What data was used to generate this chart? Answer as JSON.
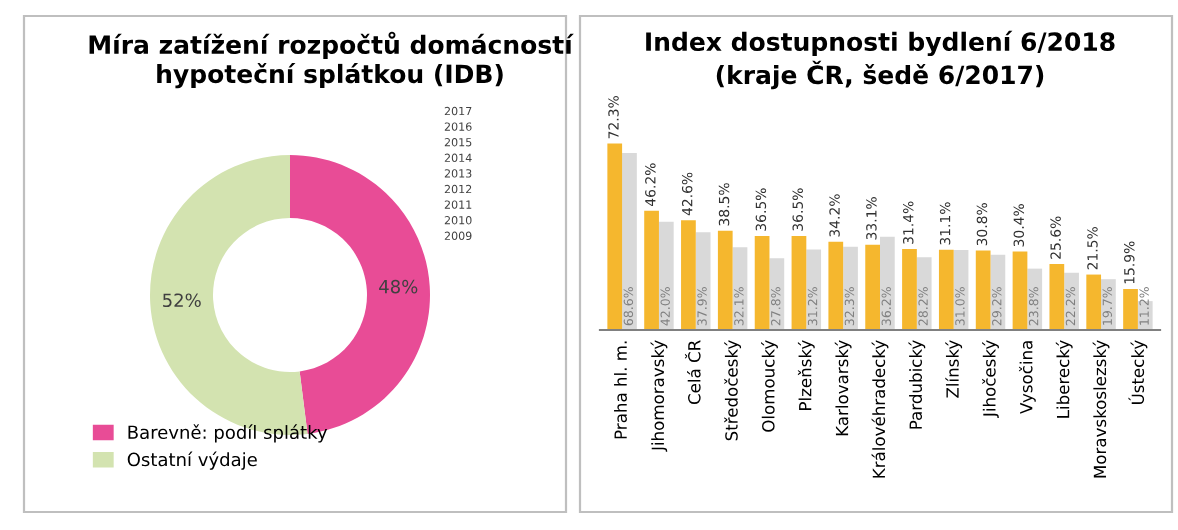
{
  "chart_data": [
    {
      "type": "donut",
      "title": "Míra zatížení rozpočtů domácností\nhypoteční splátkou (IDB)",
      "categories": [
        "Barevně: podíl splátky",
        "Ostatní výdaje"
      ],
      "values": [
        48,
        52
      ],
      "colors": [
        "#e84c96",
        "#d3e3b0"
      ],
      "value_labels": [
        "48%",
        "52%"
      ],
      "legend": "bottom left",
      "annotations": [
        "2017",
        "2016",
        "2015",
        "2014",
        "2013",
        "2012",
        "2011",
        "2010",
        "2009"
      ]
    },
    {
      "type": "bar",
      "title": "Index dostupnosti bydlení 6/2018\n(kraje ČR, šedě 6/2017)",
      "categories": [
        "Praha hl. m.",
        "Jihomoravský",
        "Celá ČR",
        "Středočeský",
        "Olomoucký",
        "Plzeňský",
        "Karlovarský",
        "Královéhradecký",
        "Pardubický",
        "Zlínský",
        "Jihočeský",
        "Vysočina",
        "Liberecký",
        "Moravskoslezský",
        "Ústecký"
      ],
      "tick_labels": "x",
      "legend": false,
      "series": [
        {
          "color": "#f5b72e",
          "values": [
            72.3,
            46.2,
            42.6,
            38.5,
            36.5,
            36.5,
            34.2,
            33.1,
            31.4,
            31.1,
            30.8,
            30.4,
            25.6,
            21.5,
            15.9
          ],
          "value_labels": [
            "72.3%",
            "46.2%",
            "42.6%",
            "38.5%",
            "36.5%",
            "36.5%",
            "34.2%",
            "33.1%",
            "31.4%",
            "31.1%",
            "30.8%",
            "30.4%",
            "25.6%",
            "21.5%",
            "15.9%"
          ]
        },
        {
          "color": "#d9d9d9",
          "values": [
            68.6,
            42.0,
            37.9,
            32.1,
            27.8,
            31.2,
            32.3,
            36.2,
            28.2,
            31.0,
            29.2,
            23.8,
            22.2,
            19.7,
            11.2
          ],
          "value_labels": [
            "68.6%",
            "42.0%",
            "37.9%",
            "32.1%",
            "27.8%",
            "31.2%",
            "32.3%",
            "36.2%",
            "28.2%",
            "31.0%",
            "29.2%",
            "23.8%",
            "22.2%",
            "19.7%",
            "11.2%"
          ]
        }
      ]
    }
  ]
}
